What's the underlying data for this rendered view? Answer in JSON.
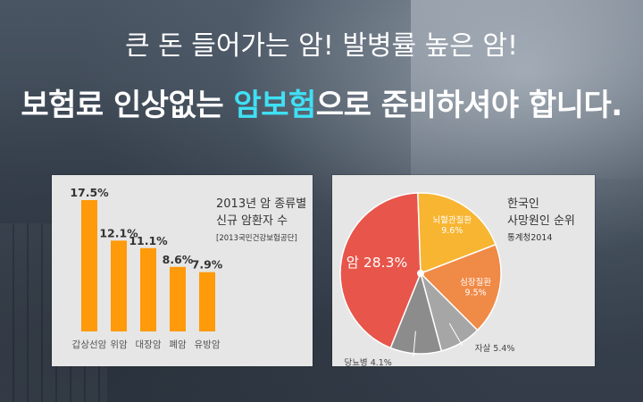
{
  "headline": {
    "line1": "큰 돈 들어가는 암! 발병률 높은 암!",
    "line2_part1": "보험료 인상없는 ",
    "line2_highlight": "암보험",
    "line2_part2": "으로 준비하셔야 합니다."
  },
  "chart_data": [
    {
      "type": "bar",
      "title_lines": [
        "2013년 암 종류별",
        "신규 암환자 수"
      ],
      "source": "[2013국민건강보험공단]",
      "categories": [
        "갑상선암",
        "위암",
        "대장암",
        "폐암",
        "유방암"
      ],
      "values": [
        17.5,
        12.1,
        11.1,
        8.6,
        7.9
      ],
      "value_labels": [
        "17.5%",
        "12.1%",
        "11.1%",
        "8.6%",
        "7.9%"
      ],
      "color": "#ff9a0a",
      "ylim": [
        0,
        17.5
      ],
      "grid": false
    },
    {
      "type": "pie",
      "title_lines": [
        "한국인",
        "사망원인 순위"
      ],
      "source": "통계청2014",
      "slices": [
        {
          "name": "암",
          "label": "암 28.3%",
          "value": 28.3,
          "color": "#e8554a"
        },
        {
          "name": "뇌혈관질환",
          "label_lines": [
            "뇌혈관질환",
            "9.6%"
          ],
          "value": 9.6,
          "color": "#f7b531"
        },
        {
          "name": "심장질환",
          "label_lines": [
            "심장질환",
            "9.5%"
          ],
          "value": 9.5,
          "color": "#f08a47"
        },
        {
          "name": "자살",
          "label": "자살 5.4%",
          "value": 5.4,
          "color": "#a6a6a6"
        },
        {
          "name": "당뇨병",
          "label": "당뇨병 4.1%",
          "value": 4.1,
          "color": "#8c8c8c"
        }
      ]
    }
  ]
}
